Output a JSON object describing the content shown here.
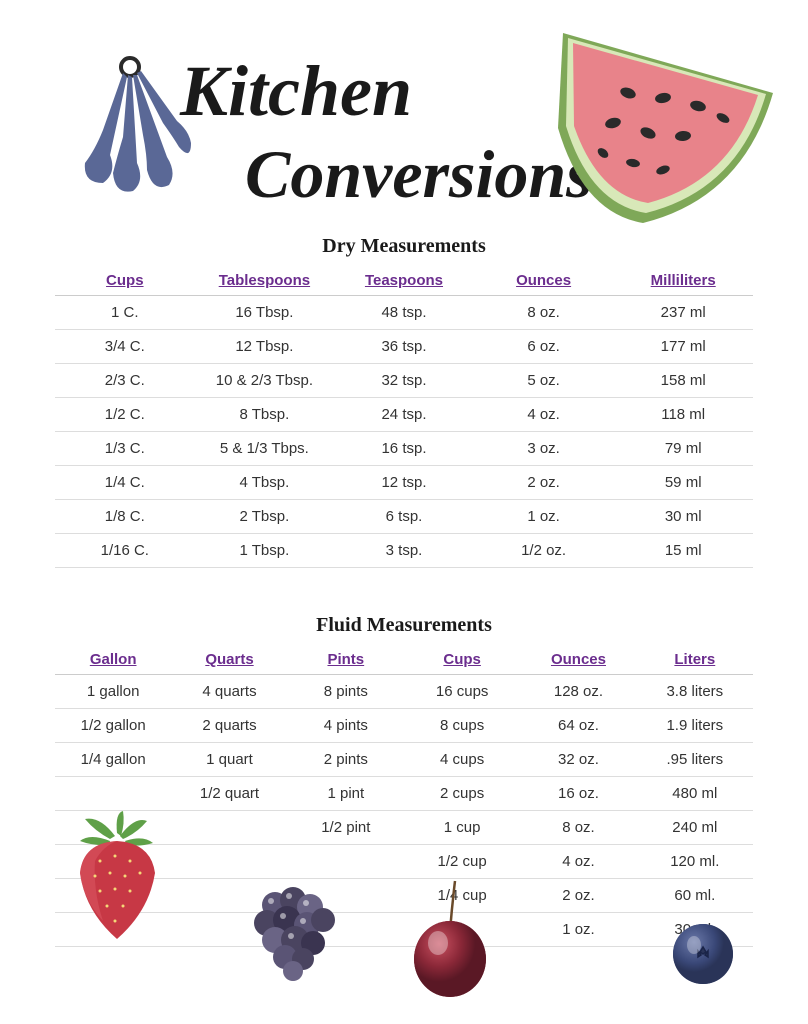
{
  "title": {
    "line1": "Kitchen",
    "line2": "Conversions"
  },
  "colors": {
    "header_text": "#6b2d8e",
    "title_text": "#1a1a1a",
    "cell_text": "#333333",
    "border": "#dddddd",
    "background": "#ffffff",
    "spoons": "#5a6896",
    "watermelon_flesh": "#e8838a",
    "watermelon_rind": "#7fa858",
    "strawberry": "#c73845",
    "strawberry_leaf": "#5fa048",
    "blackberry": "#4a4460",
    "cherry": "#8b2838",
    "blueberry": "#3a4878"
  },
  "drySection": {
    "title": "Dry Measurements",
    "columns": [
      "Cups",
      "Tablespoons",
      "Teaspoons",
      "Ounces",
      "Milliliters"
    ],
    "rows": [
      [
        "1 C.",
        "16 Tbsp.",
        "48 tsp.",
        "8 oz.",
        "237 ml"
      ],
      [
        "3/4 C.",
        "12 Tbsp.",
        "36 tsp.",
        "6 oz.",
        "177 ml"
      ],
      [
        "2/3 C.",
        "10 & 2/3 Tbsp.",
        "32 tsp.",
        "5 oz.",
        "158 ml"
      ],
      [
        "1/2 C.",
        "8 Tbsp.",
        "24 tsp.",
        "4 oz.",
        "118 ml"
      ],
      [
        "1/3 C.",
        "5 & 1/3 Tbps.",
        "16 tsp.",
        "3 oz.",
        "79 ml"
      ],
      [
        "1/4 C.",
        "4 Tbsp.",
        "12 tsp.",
        "2 oz.",
        "59 ml"
      ],
      [
        "1/8 C.",
        "2 Tbsp.",
        "6 tsp.",
        "1 oz.",
        "30 ml"
      ],
      [
        "1/16 C.",
        "1 Tbsp.",
        "3 tsp.",
        "1/2 oz.",
        "15 ml"
      ]
    ]
  },
  "fluidSection": {
    "title": "Fluid Measurements",
    "columns": [
      "Gallon",
      "Quarts",
      "Pints",
      "Cups",
      "Ounces",
      "Liters"
    ],
    "rows": [
      [
        "1 gallon",
        "4 quarts",
        "8 pints",
        "16 cups",
        "128 oz.",
        "3.8 liters"
      ],
      [
        "1/2 gallon",
        "2 quarts",
        "4 pints",
        "8 cups",
        "64 oz.",
        "1.9 liters"
      ],
      [
        "1/4 gallon",
        "1 quart",
        "2 pints",
        "4 cups",
        "32 oz.",
        ".95 liters"
      ],
      [
        "",
        "1/2 quart",
        "1 pint",
        "2 cups",
        "16 oz.",
        "480 ml"
      ],
      [
        "",
        "",
        "1/2 pint",
        "1 cup",
        "8 oz.",
        "240 ml"
      ],
      [
        "",
        "",
        "",
        "1/2 cup",
        "4 oz.",
        "120 ml."
      ],
      [
        "",
        "",
        "",
        "1/4 cup",
        "2 oz.",
        "60 ml."
      ],
      [
        "",
        "",
        "",
        "",
        "1 oz.",
        "30 ml."
      ]
    ]
  }
}
